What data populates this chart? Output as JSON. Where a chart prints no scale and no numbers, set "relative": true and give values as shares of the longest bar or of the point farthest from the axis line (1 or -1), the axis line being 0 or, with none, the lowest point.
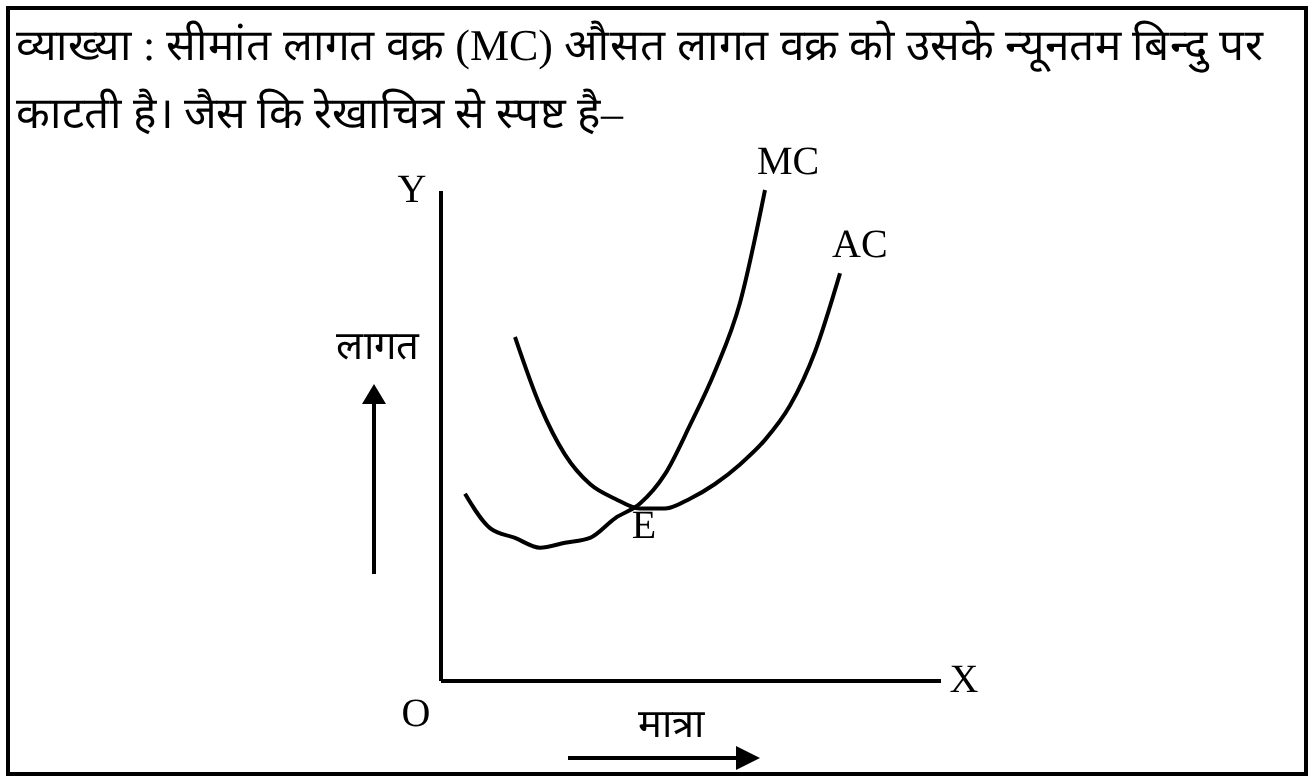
{
  "chart_data": {
    "type": "line",
    "relative": true,
    "title": "व्याख्या : सीमांत लागत वक्र (MC) औसत लागत वक्र को उसके न्यूनतम बिन्दु पर काटती है। जैस कि रेखाचित्र से स्पष्ट है–",
    "xlabel": "मात्रा",
    "ylabel": "लागत",
    "tick_labels": false,
    "grid": false,
    "marker": "none",
    "line_style": "solid",
    "categories": [
      null,
      null,
      null,
      null,
      null,
      null,
      null,
      null,
      null,
      null,
      null,
      null,
      null,
      null,
      null,
      null,
      null,
      null,
      null,
      null,
      null
    ],
    "series": [
      {
        "name": "MC",
        "color": "#000000",
        "values": [
          null,
          0.38,
          0.31,
          0.29,
          0.27,
          0.28,
          0.29,
          0.33,
          0.36,
          0.42,
          0.52,
          0.63,
          0.77,
          1.0,
          null,
          null,
          null,
          null,
          null,
          null,
          null
        ]
      },
      {
        "name": "AC",
        "color": "#000000",
        "values": [
          null,
          null,
          null,
          0.7,
          0.56,
          0.46,
          0.4,
          0.37,
          0.35,
          0.35,
          0.37,
          0.4,
          0.44,
          0.49,
          0.56,
          0.67,
          0.83,
          null,
          null,
          null,
          null
        ]
      }
    ],
    "annotations": [
      "E",
      "Y",
      "X",
      "O"
    ]
  }
}
